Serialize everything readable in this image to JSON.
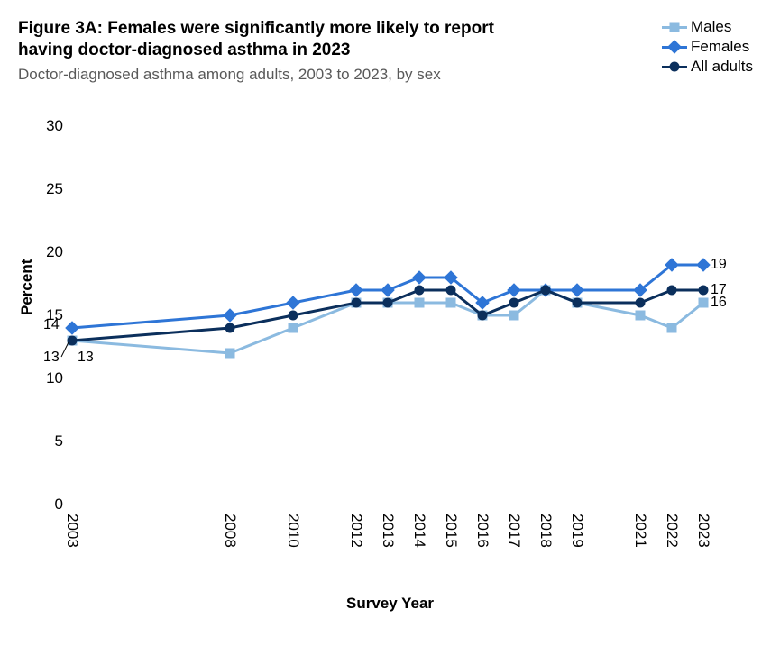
{
  "chart": {
    "type": "line",
    "title": "Figure 3A: Females were significantly more likely to report having doctor-diagnosed asthma in 2023",
    "subtitle": "Doctor-diagnosed asthma among adults, 2003 to 2023, by sex",
    "ylabel": "Percent",
    "xlabel": "Survey Year",
    "background_color": "#ffffff",
    "title_fontsize": 19,
    "subtitle_fontsize": 17,
    "subtitle_color": "#595959",
    "label_fontsize": 17,
    "tick_fontsize": 17,
    "ylim": [
      0,
      30
    ],
    "ytick_step": 5,
    "yticks": [
      0,
      5,
      10,
      15,
      20,
      25,
      30
    ],
    "years": [
      2003,
      2008,
      2010,
      2012,
      2013,
      2014,
      2015,
      2016,
      2017,
      2018,
      2019,
      2021,
      2022,
      2023
    ],
    "xlim": [
      2003,
      2023
    ],
    "line_width": 3,
    "marker_size": 11,
    "series": [
      {
        "name": "Males",
        "color": "#8bbae0",
        "marker": "square",
        "values": [
          13,
          12,
          14,
          16,
          16,
          16,
          16,
          15,
          15,
          17,
          16,
          15,
          14,
          16
        ],
        "start_label": "13",
        "end_label": "16"
      },
      {
        "name": "Females",
        "color": "#2e75d6",
        "marker": "diamond",
        "values": [
          14,
          15,
          16,
          17,
          17,
          18,
          18,
          16,
          17,
          17,
          17,
          17,
          19,
          19
        ],
        "start_label": "14",
        "end_label": "19"
      },
      {
        "name": "All adults",
        "color": "#0b2f5c",
        "marker": "circle",
        "values": [
          13,
          14,
          15,
          16,
          16,
          17,
          17,
          15,
          16,
          17,
          16,
          16,
          17,
          17
        ],
        "start_label": "13",
        "end_label": "17"
      }
    ],
    "legend_position": "top-right"
  }
}
